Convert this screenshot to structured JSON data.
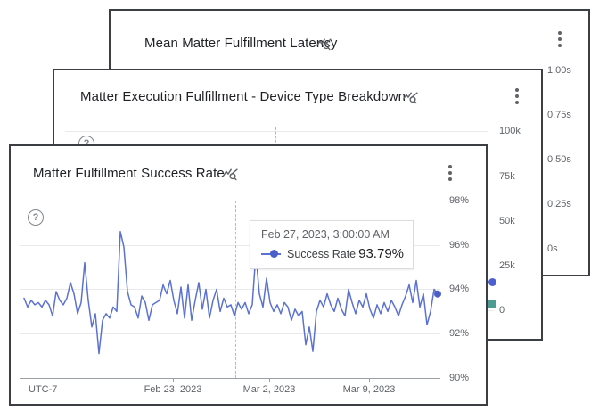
{
  "cards": {
    "latency": {
      "title": "Mean Matter Fulfillment Latency",
      "y_ticks": [
        "1.00s",
        "0.75s",
        "0.50s",
        "0.25s",
        "0s"
      ]
    },
    "breakdown": {
      "title": "Matter Execution Fulfillment - Device Type Breakdown",
      "y_ticks": [
        "100k",
        "75k",
        "50k",
        "25k",
        "0"
      ]
    },
    "success": {
      "title": "Matter Fulfillment Success Rate",
      "y_ticks": [
        "98%",
        "96%",
        "94%",
        "92%",
        "90%"
      ],
      "x_ticks": [
        "Feb 23, 2023",
        "Mar 2, 2023",
        "Mar 9, 2023"
      ],
      "timezone_label": "UTC-7",
      "help_glyph": "?",
      "tooltip": {
        "timestamp": "Feb 27, 2023, 3:00:00 AM",
        "series_label": "Success Rate",
        "value": "93.79%"
      }
    }
  },
  "colors": {
    "line": "#5b72d2",
    "end_dot": "#4a60c8",
    "breakdown_dot": "#4a5fd0",
    "breakdown_square": "#4d9c94",
    "card_border": "#3b3e42",
    "gray_text": "#5f6368"
  },
  "chart_data": [
    {
      "type": "line",
      "title": "Matter Fulfillment Success Rate",
      "ylabel": "Success Rate",
      "ylim": [
        90,
        98
      ],
      "y_tick_labels": [
        "98%",
        "96%",
        "94%",
        "92%",
        "90%"
      ],
      "x_tick_labels": [
        "Feb 23, 2023",
        "Mar 2, 2023",
        "Mar 9, 2023"
      ],
      "timezone": "UTC-7",
      "grid": true,
      "legend_position": "tooltip",
      "hover": {
        "timestamp": "Feb 27, 2023, 3:00:00 AM",
        "series": "Success Rate",
        "value_pct": 93.79
      },
      "series": [
        {
          "name": "Success Rate",
          "color": "#5b72d2",
          "unit": "%",
          "values": [
            93.6,
            93.2,
            93.5,
            93.3,
            93.4,
            93.2,
            93.5,
            93.3,
            92.8,
            93.9,
            93.5,
            93.3,
            93.6,
            94.3,
            93.8,
            92.9,
            93.4,
            95.2,
            93.5,
            92.3,
            92.9,
            91.1,
            92.6,
            92.9,
            92.7,
            93.2,
            93.0,
            96.6,
            95.9,
            93.9,
            93.3,
            93.2,
            92.7,
            93.7,
            93.4,
            92.6,
            93.3,
            93.4,
            93.5,
            94.2,
            93.8,
            94.4,
            93.5,
            92.9,
            94.1,
            92.7,
            94.2,
            92.6,
            93.5,
            94.3,
            93.1,
            94.0,
            92.7,
            93.5,
            94.0,
            93.0,
            93.6,
            93.2,
            93.3,
            92.8,
            93.4,
            93.1,
            93.4,
            92.9,
            93.3,
            95.6,
            93.8,
            93.2,
            94.5,
            93.4,
            93.0,
            93.3,
            92.9,
            93.4,
            93.2,
            92.6,
            93.1,
            92.8,
            93.0,
            91.5,
            92.3,
            91.2,
            93.0,
            93.5,
            93.2,
            93.8,
            93.3,
            93.0,
            93.6,
            93.1,
            92.8,
            94.0,
            93.4,
            92.9,
            93.5,
            93.2,
            93.8,
            93.1,
            92.7,
            93.3,
            92.9,
            93.4,
            93.0,
            93.5,
            93.2,
            92.8,
            93.3,
            93.7,
            94.2,
            93.4,
            94.4,
            93.2,
            93.8,
            92.4,
            93.0,
            94.0,
            93.79
          ]
        }
      ]
    },
    {
      "type": "line",
      "title": "Matter Execution Fulfillment - Device Type Breakdown",
      "ylim": [
        0,
        100000
      ],
      "y_tick_labels": [
        "100k",
        "75k",
        "50k",
        "25k",
        "0"
      ],
      "visible_points": [
        {
          "shape": "circle",
          "color": "#4a5fd0",
          "approx_value": 16000
        },
        {
          "shape": "square",
          "color": "#4d9c94",
          "approx_value": 3500
        }
      ]
    },
    {
      "type": "line",
      "title": "Mean Matter Fulfillment Latency",
      "ylim": [
        0,
        1
      ],
      "y_tick_labels": [
        "1.00s",
        "0.75s",
        "0.50s",
        "0.25s",
        "0s"
      ]
    }
  ]
}
